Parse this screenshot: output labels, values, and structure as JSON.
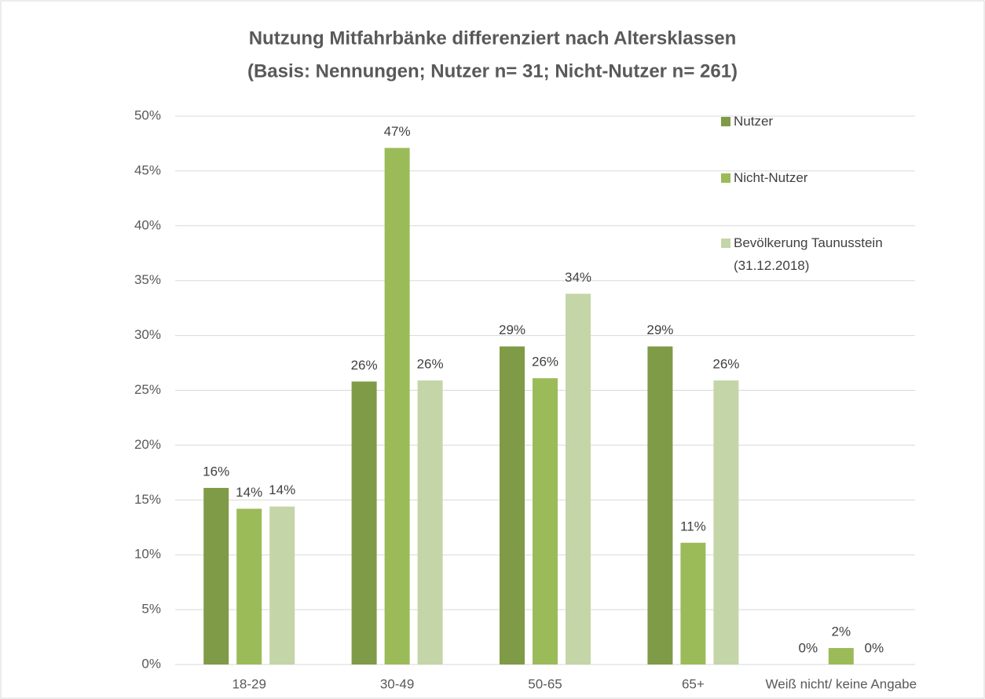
{
  "chart_data": {
    "type": "bar",
    "title": "Nutzung Mitfahrbänke differenziert nach Altersklassen",
    "subtitle": "(Basis: Nennungen; Nutzer n= 31; Nicht-Nutzer n= 261)",
    "categories": [
      "18-29",
      "30-49",
      "50-65",
      "65+",
      "Weiß nicht/ keine Angabe"
    ],
    "series": [
      {
        "name": "Nutzer",
        "color": "#7f9b47",
        "values": [
          16.1,
          25.8,
          29.0,
          29.0,
          0
        ],
        "value_labels": [
          "16%",
          "26%",
          "29%",
          "29%",
          "0%"
        ]
      },
      {
        "name": "Nicht-Nutzer",
        "color": "#9bbb59",
        "values": [
          14.2,
          47.1,
          26.1,
          11.1,
          1.5
        ],
        "value_labels": [
          "14%",
          "47%",
          "26%",
          "11%",
          "2%"
        ]
      },
      {
        "name": "Bevölkerung Taunusstein (31.12.2018)",
        "color": "#c4d5a8",
        "values": [
          14.4,
          25.9,
          33.8,
          25.9,
          0
        ],
        "value_labels": [
          "14%",
          "26%",
          "34%",
          "26%",
          "0%"
        ]
      }
    ],
    "ylim": [
      0,
      50
    ],
    "yticks": [
      {
        "value": 0,
        "label": "0%"
      },
      {
        "value": 5,
        "label": "5%"
      },
      {
        "value": 10,
        "label": "10%"
      },
      {
        "value": 15,
        "label": "15%"
      },
      {
        "value": 20,
        "label": "20%"
      },
      {
        "value": 25,
        "label": "25%"
      },
      {
        "value": 30,
        "label": "30%"
      },
      {
        "value": 35,
        "label": "35%"
      },
      {
        "value": 40,
        "label": "40%"
      },
      {
        "value": 45,
        "label": "45%"
      },
      {
        "value": 50,
        "label": "50%"
      }
    ],
    "grid": true,
    "legend": "right"
  }
}
